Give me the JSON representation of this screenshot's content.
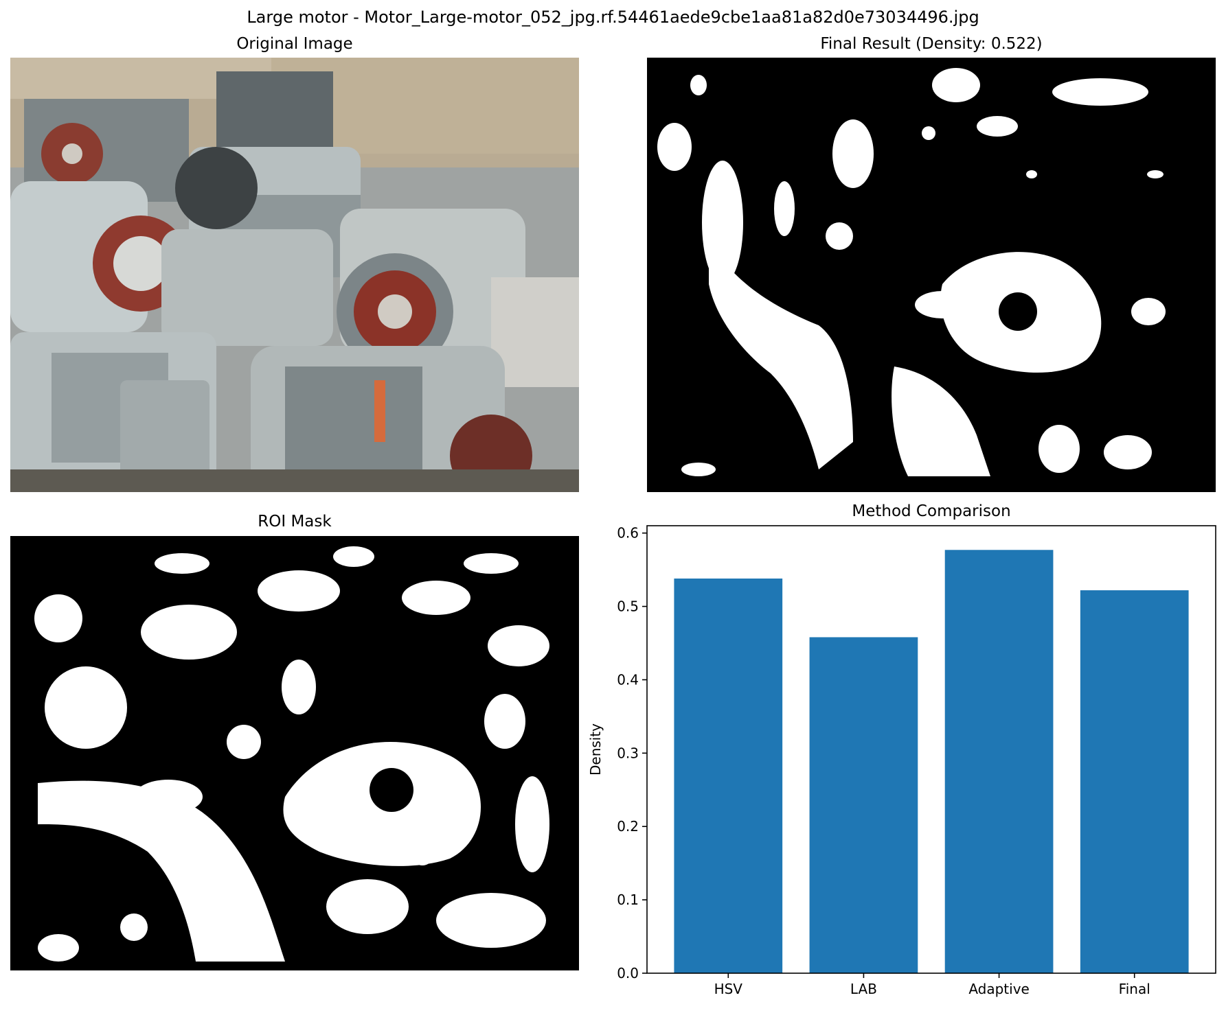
{
  "figure": {
    "suptitle": "Large motor - Motor_Large-motor_052_jpg.rf.54461aede9cbe1aa81a82d0e73034496.jpg"
  },
  "panels": {
    "original": {
      "title": "Original Image"
    },
    "final": {
      "title": "Final Result (Density: 0.522)"
    },
    "roi": {
      "title": "ROI Mask"
    }
  },
  "colors": {
    "bar": "#1f77b4",
    "mask_foreground": "#ffffff",
    "mask_background": "#000000"
  },
  "chart_data": {
    "type": "bar",
    "title": "Method Comparison",
    "xlabel": "",
    "ylabel": "Density",
    "categories": [
      "HSV",
      "LAB",
      "Adaptive",
      "Final"
    ],
    "values": [
      0.538,
      0.458,
      0.577,
      0.522
    ],
    "ylim": [
      0,
      0.61
    ],
    "yticks": [
      "0.0",
      "0.1",
      "0.2",
      "0.3",
      "0.4",
      "0.5",
      "0.6"
    ],
    "grid": false
  }
}
